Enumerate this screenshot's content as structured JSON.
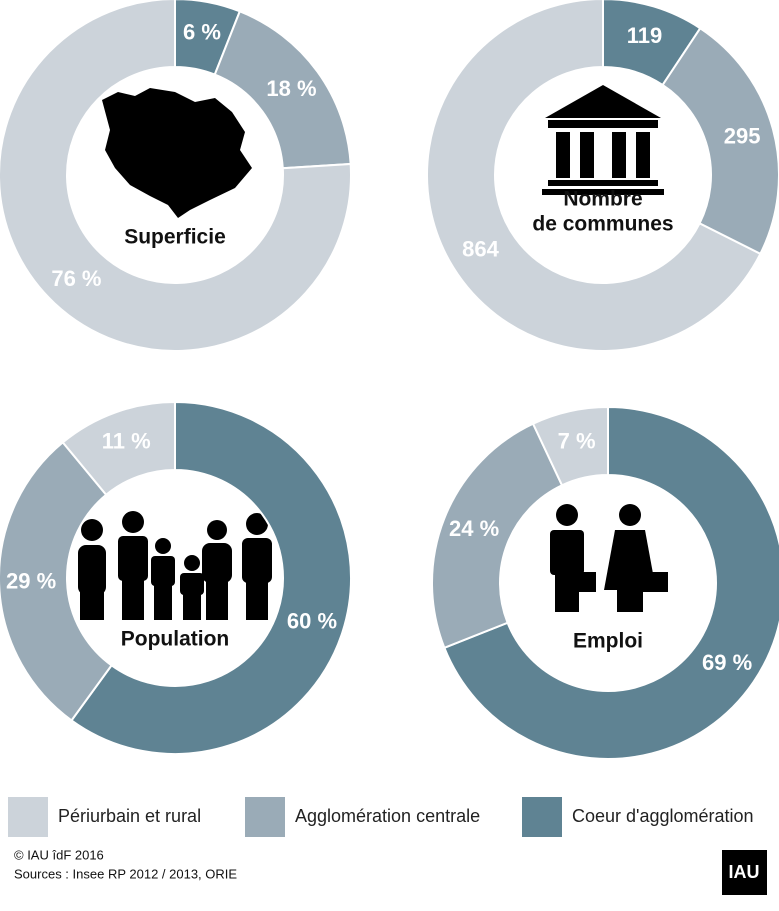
{
  "legend": {
    "items": [
      {
        "name": "Coeur d'agglomération",
        "color": "#5f8393"
      },
      {
        "name": "Agglomération centrale",
        "color": "#9aabb7"
      },
      {
        "name": "Périurbain et rural",
        "color": "#ccd3da"
      }
    ]
  },
  "chart_data": [
    {
      "type": "pie",
      "center_label": [
        "Superficie"
      ],
      "values": [
        6,
        18,
        76
      ],
      "value_labels": [
        "6 %",
        "18 %",
        "76 %"
      ]
    },
    {
      "type": "pie",
      "center_label": [
        "Nombre",
        "de communes"
      ],
      "values": [
        119,
        295,
        864
      ]
    },
    {
      "type": "pie",
      "center_label": [
        "Population"
      ],
      "values": [
        60,
        29,
        11
      ],
      "value_labels": [
        "60 %",
        "29 %",
        "11 %"
      ]
    },
    {
      "type": "pie",
      "center_label": [
        "Emploi"
      ],
      "values": [
        69,
        24,
        7
      ],
      "value_labels": [
        "69 %",
        "24 %",
        "7 %"
      ]
    }
  ],
  "footer": {
    "copyright": "© IAU îdF 2016",
    "sources": "Sources : Insee RP 2012 / 2013, ORIE",
    "logo": "IAU"
  }
}
